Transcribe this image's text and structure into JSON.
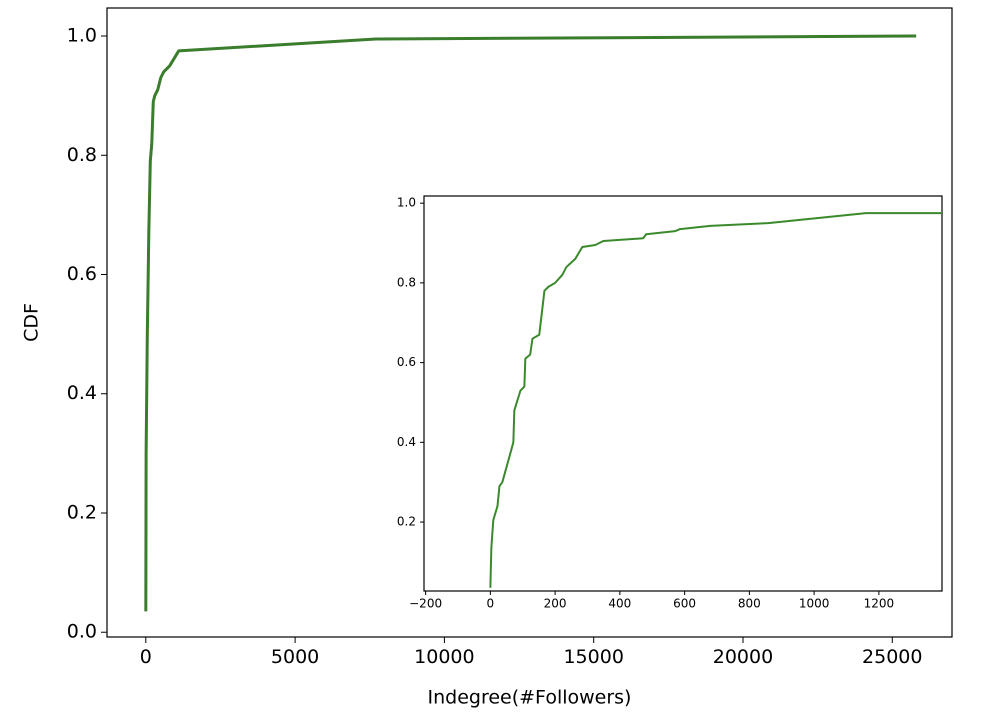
{
  "chart_data": [
    {
      "type": "line",
      "xlabel": "Indegree(#Followers)",
      "ylabel": "CDF",
      "xlim": [
        -1300,
        27000
      ],
      "ylim": [
        -0.008,
        1.047
      ],
      "xticks": [
        0,
        5000,
        10000,
        15000,
        20000,
        25000
      ],
      "yticks": [
        {
          "value": 0,
          "label": "0.0"
        },
        0.2,
        0.4,
        0.6,
        0.8,
        {
          "value": 1,
          "label": "1.0"
        }
      ],
      "series": [
        {
          "color": "#3a7d2c",
          "x": [
            0,
            10,
            50,
            80,
            100,
            150,
            200,
            250,
            300,
            400,
            500,
            600,
            800,
            1100,
            7700,
            25800
          ],
          "values": [
            0.035,
            0.3,
            0.5,
            0.6,
            0.67,
            0.79,
            0.82,
            0.89,
            0.9,
            0.91,
            0.93,
            0.94,
            0.95,
            0.975,
            0.995,
            1.0
          ]
        }
      ]
    },
    {
      "type": "line",
      "xlim": [
        -205,
        1395
      ],
      "ylim": [
        0.027,
        1.018
      ],
      "xticks": [
        {
          "value": -200,
          "label": "−200"
        },
        0,
        200,
        400,
        600,
        800,
        1000,
        1200
      ],
      "yticks": [
        0.2,
        0.4,
        0.6,
        0.8,
        {
          "value": 1,
          "label": "1.0"
        }
      ],
      "series": [
        {
          "color": "#3a8a2c",
          "x": [
            0,
            3,
            9,
            22,
            28,
            37,
            71,
            74,
            93,
            105,
            108,
            123,
            130,
            151,
            167,
            179,
            200,
            222,
            235,
            262,
            284,
            324,
            349,
            472,
            481,
            571,
            586,
            679,
            858,
            1160,
            1395
          ],
          "values": [
            0.035,
            0.135,
            0.205,
            0.24,
            0.29,
            0.3,
            0.4,
            0.48,
            0.53,
            0.54,
            0.61,
            0.62,
            0.66,
            0.67,
            0.78,
            0.79,
            0.8,
            0.82,
            0.84,
            0.86,
            0.89,
            0.895,
            0.905,
            0.912,
            0.922,
            0.93,
            0.935,
            0.943,
            0.95,
            0.975,
            0.975
          ]
        }
      ]
    }
  ]
}
